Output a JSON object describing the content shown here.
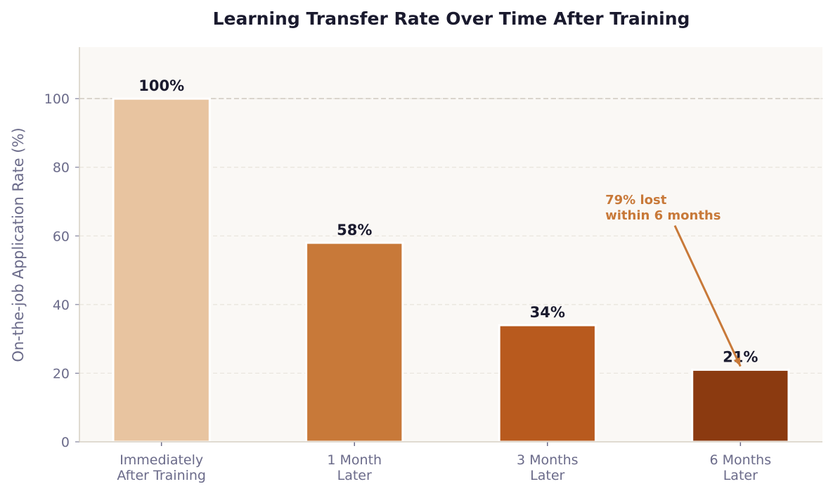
{
  "chart_data": {
    "type": "bar",
    "title": "Learning Transfer Rate Over Time After Training",
    "xlabel": "",
    "ylabel": "On-the-job Application Rate (%)",
    "categories": [
      [
        "Immediately",
        "After Training"
      ],
      [
        "1 Month",
        "Later"
      ],
      [
        "3 Months",
        "Later"
      ],
      [
        "6 Months",
        "Later"
      ]
    ],
    "values": [
      100,
      58,
      34,
      21
    ],
    "data_labels": [
      "100%",
      "58%",
      "34%",
      "21%"
    ],
    "colors": [
      "#e8c4a0",
      "#c87939",
      "#b85a1e",
      "#8b3a10"
    ],
    "ylim": [
      0,
      115
    ],
    "yticks": [
      0,
      20,
      40,
      60,
      80,
      100
    ],
    "grid": "horizontal dashed",
    "reference_line": 100,
    "annotation": {
      "text": [
        "79% lost",
        "within 6 months"
      ],
      "color": "#c87939",
      "text_at": {
        "category_index": 2.3,
        "y": 68
      },
      "arrow_from": {
        "category_index": 2.66,
        "y": 63
      },
      "arrow_to": {
        "category_index": 3,
        "y": 22
      }
    },
    "background": "#faf8f5",
    "text_color": "#1a1a2e",
    "axis_color": "#6b6b8a"
  }
}
